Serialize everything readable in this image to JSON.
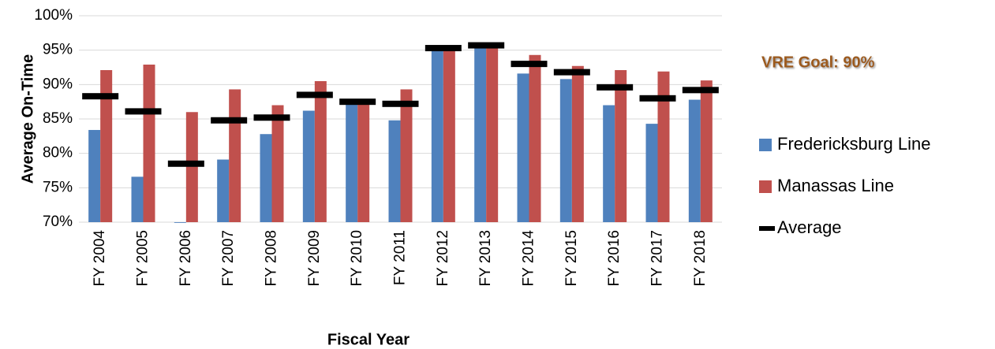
{
  "chart_data": {
    "type": "bar",
    "x_label": "Fiscal Year",
    "y_label": "Average On-Time",
    "annotation": "VRE Goal: 90%",
    "categories": [
      "FY 2004",
      "FY 2005",
      "FY 2006",
      "FY 2007",
      "FY 2008",
      "FY 2009",
      "FY 2010",
      "FY 2011",
      "FY 2012",
      "FY 2013",
      "FY 2014",
      "FY 2015",
      "FY 2016",
      "FY 2017",
      "FY 2018"
    ],
    "series": [
      {
        "name": "Fredericksburg Line",
        "color": "#4f81bd",
        "mark": "bar",
        "values": [
          83.4,
          76.6,
          69.9,
          79.1,
          82.8,
          86.2,
          87.2,
          84.8,
          95.3,
          95.6,
          91.6,
          90.8,
          87.0,
          84.3,
          87.8
        ]
      },
      {
        "name": "Manassas Line",
        "color": "#c0504d",
        "mark": "bar",
        "values": [
          92.1,
          92.9,
          86.0,
          89.3,
          87.0,
          90.5,
          87.7,
          89.3,
          95.3,
          95.6,
          94.3,
          92.7,
          92.1,
          91.9,
          90.6
        ]
      },
      {
        "name": "Average",
        "color": "#000000",
        "mark": "dash",
        "values": [
          88.3,
          86.1,
          78.5,
          84.8,
          85.2,
          88.5,
          87.5,
          87.2,
          95.3,
          95.7,
          93.0,
          91.8,
          89.6,
          88.0,
          89.2
        ]
      }
    ],
    "ylim": [
      70,
      100
    ],
    "yticks": [
      {
        "value": 70,
        "label": "70%"
      },
      {
        "value": 75,
        "label": "75%"
      },
      {
        "value": 80,
        "label": "80%"
      },
      {
        "value": 85,
        "label": "85%"
      },
      {
        "value": 90,
        "label": "90%"
      },
      {
        "value": 95,
        "label": "95%"
      },
      {
        "value": 100,
        "label": "100%"
      }
    ],
    "grid": true,
    "legend": "right"
  }
}
